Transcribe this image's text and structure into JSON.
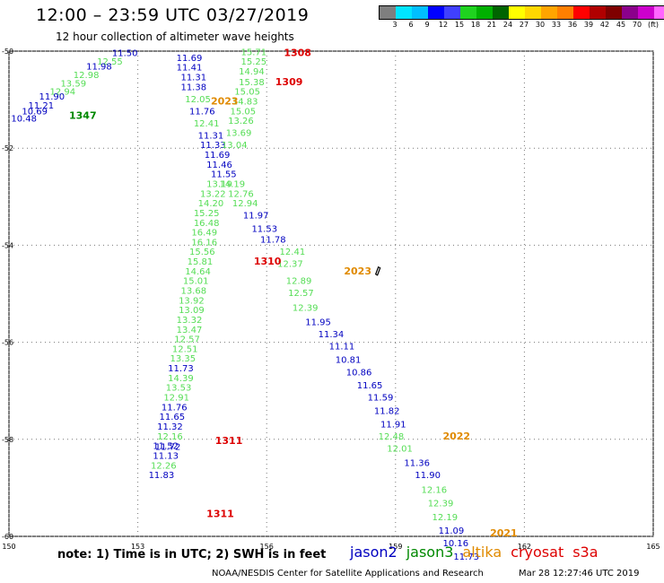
{
  "header": {
    "title": "12:00 – 23:59 UTC 03/27/2019",
    "subtitle": "12 hour collection of altimeter wave heights"
  },
  "colorbar": {
    "colors": [
      "#7f7f7f",
      "#00e5ff",
      "#00bfff",
      "#0000ff",
      "#4040ff",
      "#1fd21f",
      "#00b000",
      "#006400",
      "#ffff00",
      "#ffd700",
      "#ffa500",
      "#ff7f00",
      "#ff0000",
      "#b00000",
      "#7f0000",
      "#8b008b",
      "#cc00cc",
      "#ff66ff",
      "#000000"
    ],
    "labels": [
      "3",
      "6",
      "9",
      "12",
      "15",
      "18",
      "21",
      "24",
      "27",
      "30",
      "33",
      "36",
      "39",
      "42",
      "45",
      "70",
      "(ft)"
    ]
  },
  "axes": {
    "lat_ticks": [
      "-50",
      "-52",
      "-54",
      "-56",
      "-58",
      "-60"
    ],
    "lon_ticks": [
      "150",
      "153",
      "156",
      "159",
      "162",
      "165"
    ]
  },
  "colors": {
    "jason2": "#0000c0",
    "jason3": "#55dd55",
    "jason3_pass": "#008800",
    "altika": "#e08a00",
    "cryosat": "#dd0000"
  },
  "passes": [
    {
      "label": "1308",
      "sat": "cryosat",
      "lon": 156.4,
      "lat": -50.1
    },
    {
      "label": "1309",
      "sat": "cryosat",
      "lon": 156.2,
      "lat": -50.7
    },
    {
      "label": "2023",
      "sat": "altika",
      "lon": 154.7,
      "lat": -51.1
    },
    {
      "label": "1347",
      "sat": "jason3_pass",
      "lon": 151.4,
      "lat": -51.4
    },
    {
      "label": "1310",
      "sat": "cryosat",
      "lon": 155.7,
      "lat": -54.4
    },
    {
      "label": "2023",
      "sat": "altika",
      "lon": 157.8,
      "lat": -54.6
    },
    {
      "label": "2022",
      "sat": "altika",
      "lon": 160.1,
      "lat": -58.0
    },
    {
      "label": "1311",
      "sat": "cryosat",
      "lon": 154.8,
      "lat": -58.1
    },
    {
      "label": "1311",
      "sat": "cryosat",
      "lon": 154.6,
      "lat": -59.6
    },
    {
      "label": "2021",
      "sat": "altika",
      "lon": 161.2,
      "lat": -60.0
    }
  ],
  "track_a": {
    "values": [
      "11.50",
      "12.55",
      "11.98",
      "12.98",
      "13.59",
      "12.94",
      "11.90",
      "11.21",
      "10.69",
      "10.48"
    ],
    "sats": [
      "jason2",
      "jason3",
      "jason2",
      "jason3",
      "jason3",
      "jason3",
      "jason2",
      "jason2",
      "jason2",
      "jason2"
    ],
    "lon": [
      152.4,
      152.05,
      151.8,
      151.5,
      151.2,
      150.95,
      150.7,
      150.45,
      150.3,
      150.05
    ],
    "lat": [
      -50.1,
      -50.28,
      -50.38,
      -50.55,
      -50.73,
      -50.9,
      -51.0,
      -51.18,
      -51.3,
      -51.45
    ]
  },
  "track_b": {
    "values": [
      "11.69",
      "11.41",
      "11.31",
      "11.38",
      "12.05",
      "11.76",
      "12.41",
      "11.31",
      "11.33",
      "11.69",
      "11.46",
      "11.55",
      "13.19",
      "13.22",
      "14.20",
      "15.25",
      "16.48",
      "16.49",
      "16.16",
      "15.56",
      "15.81",
      "14.64",
      "15.01",
      "13.68",
      "13.92",
      "13.09",
      "13.32",
      "13.47",
      "12.57",
      "12.51",
      "13.35",
      "11.73",
      "14.39",
      "13.53",
      "12.91",
      "11.76",
      "11.65",
      "11.32",
      "12.16",
      "11.52",
      "11.72",
      "11.13",
      "12.26",
      "11.83"
    ],
    "sats": [
      "jason2",
      "jason2",
      "jason2",
      "jason2",
      "jason3",
      "jason2",
      "jason3",
      "jason2",
      "jason2",
      "jason2",
      "jason2",
      "jason2",
      "jason3",
      "jason3",
      "jason3",
      "jason3",
      "jason3",
      "jason3",
      "jason3",
      "jason3",
      "jason3",
      "jason3",
      "jason3",
      "jason3",
      "jason3",
      "jason3",
      "jason3",
      "jason3",
      "jason3",
      "jason3",
      "jason3",
      "jason2",
      "jason3",
      "jason3",
      "jason3",
      "jason2",
      "jason2",
      "jason2",
      "jason3",
      "jason2",
      "jason2",
      "jason2",
      "jason3",
      "jason2"
    ],
    "lon": [
      153.9,
      153.9,
      154.0,
      154.0,
      154.1,
      154.2,
      154.3,
      154.4,
      154.45,
      154.55,
      154.6,
      154.7,
      154.6,
      154.45,
      154.4,
      154.3,
      154.3,
      154.25,
      154.25,
      154.2,
      154.15,
      154.1,
      154.05,
      154.0,
      153.95,
      153.95,
      153.9,
      153.9,
      153.85,
      153.8,
      153.75,
      153.7,
      153.7,
      153.65,
      153.6,
      153.55,
      153.5,
      153.45,
      153.45,
      153.35,
      153.4,
      153.35,
      153.3,
      153.25
    ],
    "lat": [
      -50.2,
      -50.4,
      -50.6,
      -50.8,
      -51.05,
      -51.3,
      -51.55,
      -51.8,
      -52.0,
      -52.2,
      -52.4,
      -52.6,
      -52.8,
      -53.0,
      -53.2,
      -53.4,
      -53.6,
      -53.8,
      -54.0,
      -54.2,
      -54.4,
      -54.6,
      -54.8,
      -55.0,
      -55.2,
      -55.4,
      -55.6,
      -55.8,
      -56.0,
      -56.2,
      -56.4,
      -56.6,
      -56.8,
      -57.0,
      -57.2,
      -57.4,
      -57.6,
      -57.8,
      -58.0,
      -58.2,
      -58.22,
      -58.4,
      -58.6,
      -58.8
    ]
  },
  "track_c": {
    "values": [
      "15.71",
      "15.25",
      "14.94",
      "15.38",
      "15.05",
      "14.83",
      "15.05",
      "13.26",
      "13.69",
      "13.04",
      "14.19",
      "12.76",
      "12.94",
      "11.97",
      "11.53",
      "11.78"
    ],
    "sats": [
      "jason3",
      "jason3",
      "jason3",
      "jason3",
      "jason3",
      "jason3",
      "jason3",
      "jason3",
      "jason3",
      "jason3",
      "jason3",
      "jason3",
      "jason3",
      "jason2",
      "jason2",
      "jason2"
    ],
    "lon": [
      155.4,
      155.4,
      155.35,
      155.35,
      155.25,
      155.2,
      155.15,
      155.1,
      155.05,
      154.95,
      154.9,
      155.1,
      155.2,
      155.45,
      155.65,
      155.85
    ],
    "lat": [
      -50.08,
      -50.28,
      -50.48,
      -50.7,
      -50.9,
      -51.1,
      -51.3,
      -51.5,
      -51.75,
      -52.0,
      -52.8,
      -53.0,
      -53.2,
      -53.45,
      -53.72,
      -53.95
    ]
  },
  "track_d": {
    "values": [
      "12.41",
      "12.37",
      "12.89",
      "12.57",
      "12.39",
      "11.95",
      "11.34",
      "11.11",
      "10.81",
      "10.86",
      "11.65",
      "11.59",
      "11.82",
      "11.91",
      "12.48",
      "12.01",
      "11.36",
      "11.90",
      "12.16",
      "12.39",
      "12.19",
      "11.09",
      "10.16",
      "11.73"
    ],
    "sats": [
      "jason3",
      "jason3",
      "jason3",
      "jason3",
      "jason3",
      "jason2",
      "jason2",
      "jason2",
      "jason2",
      "jason2",
      "jason2",
      "jason2",
      "jason2",
      "jason2",
      "jason3",
      "jason3",
      "jason2",
      "jason2",
      "jason3",
      "jason3",
      "jason3",
      "jason2",
      "jason2",
      "jason2"
    ],
    "lon": [
      156.3,
      156.25,
      156.45,
      156.5,
      156.6,
      156.9,
      157.2,
      157.45,
      157.6,
      157.85,
      158.1,
      158.35,
      158.5,
      158.65,
      158.6,
      158.8,
      159.2,
      159.45,
      159.6,
      159.75,
      159.85,
      160.0,
      160.1,
      160.35
    ],
    "lat": [
      -54.2,
      -54.45,
      -54.8,
      -55.05,
      -55.35,
      -55.65,
      -55.9,
      -56.15,
      -56.42,
      -56.68,
      -56.95,
      -57.2,
      -57.48,
      -57.75,
      -58.0,
      -58.25,
      -58.55,
      -58.8,
      -59.1,
      -59.38,
      -59.67,
      -59.94,
      -60.2,
      -60.48
    ]
  },
  "note": "note: 1) Time is in UTC; 2) SWH is in feet",
  "legend": [
    {
      "label": "jason2",
      "sat": "jason2"
    },
    {
      "label": "jason3",
      "sat": "jason3_pass"
    },
    {
      "label": "altika",
      "sat": "altika"
    },
    {
      "label": "cryosat",
      "sat": "cryosat"
    },
    {
      "label": "s3a",
      "sat": "cryosat"
    }
  ],
  "footer": "NOAA/NESDIS Center for Satellite Applications and Research",
  "footer_time": "Mar 28 12:27:46 UTC 2019"
}
